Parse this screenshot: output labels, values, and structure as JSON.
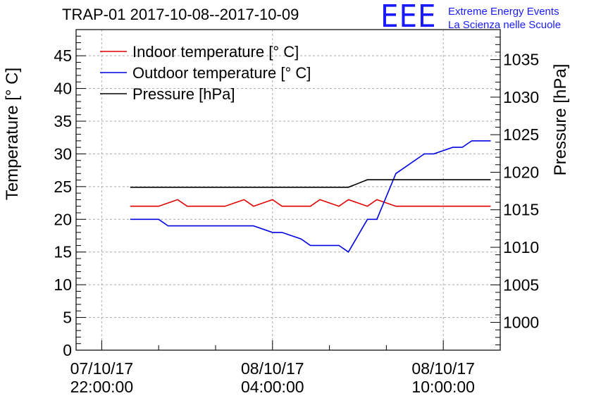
{
  "title": "TRAP-01 2017-10-08--2017-10-09",
  "logo": {
    "mark": "EEE",
    "line1": "Extreme Energy Events",
    "line2": "La Scienza nelle Scuole"
  },
  "chart_data": {
    "type": "line",
    "title": "TRAP-01 2017-10-08--2017-10-09",
    "ylabel": "Temperature [° C]",
    "y2label": "Pressure [hPa]",
    "xlabel": "",
    "xlim": [
      "2017-10-07 21:06",
      "2017-10-08 12:00"
    ],
    "ylim": [
      0,
      49
    ],
    "y2lim": [
      996.3,
      1039.0
    ],
    "yticks": [
      0,
      5,
      10,
      15,
      20,
      25,
      30,
      35,
      40,
      45
    ],
    "y2ticks": [
      1000,
      1005,
      1010,
      1015,
      1020,
      1025,
      1030,
      1035
    ],
    "xticks": [
      {
        "x": "2017-10-07 22:00",
        "line1": "07/10/17",
        "line2": "22:00:00"
      },
      {
        "x": "2017-10-08 04:00",
        "line1": "08/10/17",
        "line2": "04:00:00"
      },
      {
        "x": "2017-10-08 10:00",
        "line1": "08/10/17",
        "line2": "10:00:00"
      }
    ],
    "grid": true,
    "legend_position": "top-left",
    "series": [
      {
        "name": "Indoor temperature [° C]",
        "axis": "left",
        "color": "#e00000",
        "points": [
          [
            "2017-10-07 23:00",
            22
          ],
          [
            "2017-10-08 00:00",
            22
          ],
          [
            "2017-10-08 00:40",
            23
          ],
          [
            "2017-10-08 01:00",
            22
          ],
          [
            "2017-10-08 02:20",
            22
          ],
          [
            "2017-10-08 03:00",
            23
          ],
          [
            "2017-10-08 03:20",
            22
          ],
          [
            "2017-10-08 04:00",
            23
          ],
          [
            "2017-10-08 04:20",
            22
          ],
          [
            "2017-10-08 05:20",
            22
          ],
          [
            "2017-10-08 05:40",
            23
          ],
          [
            "2017-10-08 06:20",
            22
          ],
          [
            "2017-10-08 06:40",
            23
          ],
          [
            "2017-10-08 07:20",
            22
          ],
          [
            "2017-10-08 07:40",
            23
          ],
          [
            "2017-10-08 08:20",
            22
          ],
          [
            "2017-10-08 11:40",
            22
          ]
        ]
      },
      {
        "name": "Outdoor temperature [° C]",
        "axis": "left",
        "color": "#0000e0",
        "points": [
          [
            "2017-10-07 23:00",
            20
          ],
          [
            "2017-10-08 00:00",
            20
          ],
          [
            "2017-10-08 00:20",
            19
          ],
          [
            "2017-10-08 03:20",
            19
          ],
          [
            "2017-10-08 04:00",
            18
          ],
          [
            "2017-10-08 04:20",
            18
          ],
          [
            "2017-10-08 05:00",
            17
          ],
          [
            "2017-10-08 05:20",
            16
          ],
          [
            "2017-10-08 06:20",
            16
          ],
          [
            "2017-10-08 06:40",
            15
          ],
          [
            "2017-10-08 07:20",
            20
          ],
          [
            "2017-10-08 07:40",
            20
          ],
          [
            "2017-10-08 08:20",
            27
          ],
          [
            "2017-10-08 09:20",
            30
          ],
          [
            "2017-10-08 09:40",
            30
          ],
          [
            "2017-10-08 10:20",
            31
          ],
          [
            "2017-10-08 10:40",
            31
          ],
          [
            "2017-10-08 11:00",
            32
          ],
          [
            "2017-10-08 11:40",
            32
          ]
        ]
      },
      {
        "name": "Pressure [hPa]",
        "axis": "right",
        "color": "#000000",
        "points": [
          [
            "2017-10-07 23:00",
            1018
          ],
          [
            "2017-10-08 06:40",
            1018
          ],
          [
            "2017-10-08 07:20",
            1019
          ],
          [
            "2017-10-08 11:40",
            1019
          ]
        ]
      }
    ]
  }
}
